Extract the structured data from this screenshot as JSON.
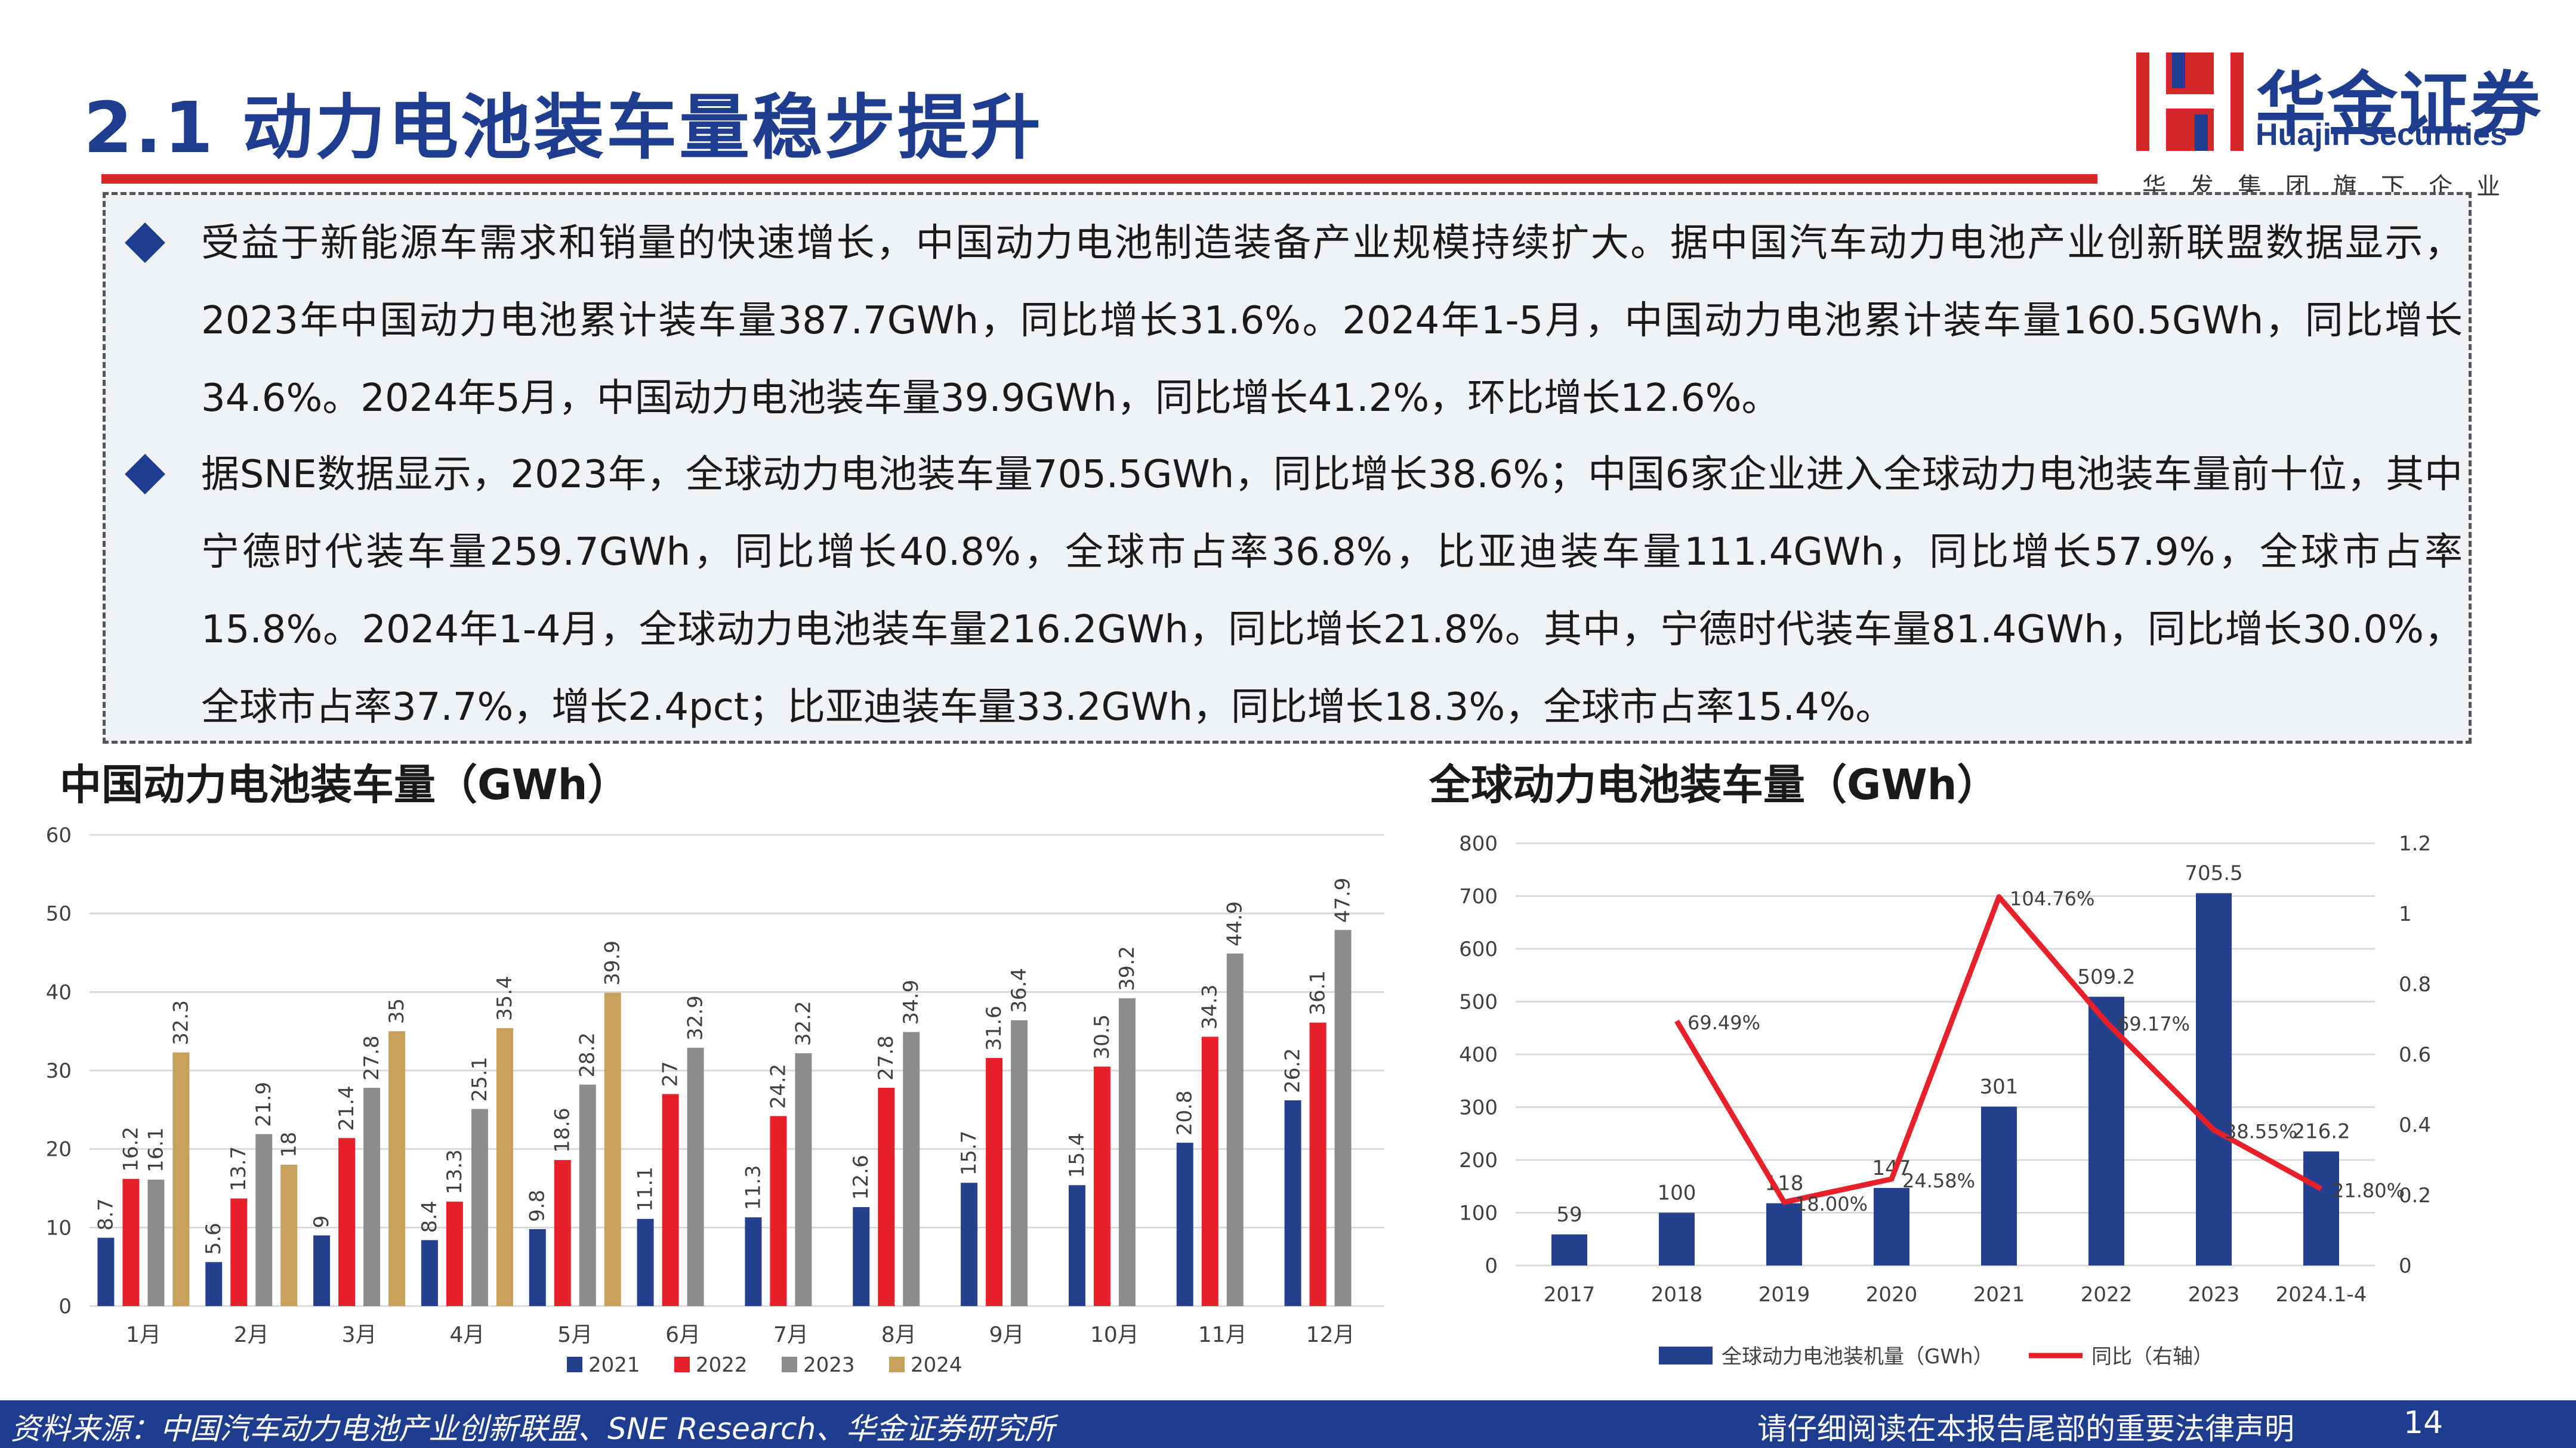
{
  "header": {
    "title": "2.1 动力电池装车量稳步提升",
    "logo_cn": "华金证券",
    "logo_en": "Huajin Securities",
    "logo_sub": "华发集团旗下企业",
    "accent": "#1f3d8f",
    "red": "#d62828"
  },
  "paragraphs": [
    {
      "text": "受益于新能源车需求和销量的快速增长，中国动力电池制造装备产业规模持续扩大。据中国汽车动力电池产业创新联盟数据显示，2023年中国动力电池累计装车量387.7GWh，同比增长31.6%。2024年1-5月，中国动力电池累计装车量160.5GWh，同比增长34.6%。2024年5月，中国动力电池装车量39.9GWh，同比增长41.2%，环比增长12.6%。"
    },
    {
      "text": "据SNE数据显示，2023年，全球动力电池装车量705.5GWh，同比增长38.6%；中国6家企业进入全球动力电池装车量前十位，其中宁德时代装车量259.7GWh，同比增长40.8%，全球市占率36.8%，比亚迪装车量111.4GWh，同比增长57.9%，全球市占率15.8%。2024年1-4月，全球动力电池装车量216.2GWh，同比增长21.8%。其中，宁德时代装车量81.4GWh，同比增长30.0%，全球市占率37.7%，增长2.4pct；比亚迪装车量33.2GWh，同比增长18.3%，全球市占率15.4%。"
    }
  ],
  "chart_data": [
    {
      "type": "bar",
      "title": "中国动力电池装车量（GWh）",
      "categories": [
        "1月",
        "2月",
        "3月",
        "4月",
        "5月",
        "6月",
        "7月",
        "8月",
        "9月",
        "10月",
        "11月",
        "12月"
      ],
      "ylim": [
        0,
        60
      ],
      "yticks": [
        "0",
        "10",
        "20",
        "30",
        "40",
        "50",
        "60"
      ],
      "grid": true,
      "legend": "bottom",
      "series": [
        {
          "name": "2021",
          "color": "#24408e",
          "values": [
            8.7,
            5.6,
            9,
            8.4,
            9.8,
            11.1,
            11.3,
            12.6,
            15.7,
            15.4,
            20.8,
            26.2
          ],
          "labels": [
            "8.7",
            "5.6",
            "9",
            "8.4",
            "9.8",
            "11.1",
            "11.3",
            "12.6",
            "15.7",
            "15.4",
            "20.8",
            "26.2"
          ]
        },
        {
          "name": "2022",
          "color": "#e8202a",
          "values": [
            16.2,
            13.7,
            21.4,
            13.3,
            18.6,
            27,
            24.2,
            27.8,
            31.6,
            30.5,
            34.3,
            36.1
          ],
          "labels": [
            "16.2",
            "13.7",
            "21.4",
            "13.3",
            "18.6",
            "27",
            "24.2",
            "27.8",
            "31.6",
            "30.5",
            "34.3",
            "36.1"
          ]
        },
        {
          "name": "2023",
          "color": "#8c8c8c",
          "values": [
            16.1,
            21.9,
            27.8,
            25.1,
            28.2,
            32.9,
            32.2,
            34.9,
            36.4,
            39.2,
            44.9,
            47.9
          ],
          "labels": [
            "16.1",
            "21.9",
            "27.8",
            "25.1",
            "28.2",
            "32.9",
            "32.2",
            "34.9",
            "36.4",
            "39.2",
            "44.9",
            "47.9"
          ]
        },
        {
          "name": "2024",
          "color": "#c8a05a",
          "values": [
            32.3,
            18,
            35,
            35.4,
            39.9,
            null,
            null,
            null,
            null,
            null,
            null,
            null
          ],
          "labels": [
            "32.3",
            "18",
            "35",
            "35.4",
            "39.9",
            "",
            "",
            "",
            "",
            "",
            "",
            ""
          ]
        }
      ]
    },
    {
      "type": "bar",
      "title": "全球动力电池装车量（GWh）",
      "categories": [
        "2017",
        "2018",
        "2019",
        "2020",
        "2021",
        "2022",
        "2023",
        "2024.1-4"
      ],
      "ylim": [
        0,
        800
      ],
      "yticks": [
        "0",
        "100",
        "200",
        "300",
        "400",
        "500",
        "600",
        "700",
        "800"
      ],
      "y2lim": [
        0,
        1.2
      ],
      "y2ticks": [
        "0",
        "0.2",
        "0.4",
        "0.6",
        "0.8",
        "1",
        "1.2"
      ],
      "grid": true,
      "legend": "bottom",
      "series": [
        {
          "name": "全球动力电池装机量（GWh）",
          "type": "bar",
          "color": "#24408e",
          "values": [
            59,
            100,
            118,
            147,
            301,
            509.2,
            705.5,
            216.2
          ],
          "labels": [
            "59",
            "100",
            "118",
            "147",
            "301",
            "509.2",
            "705.5",
            "216.2"
          ]
        },
        {
          "name": "同比（右轴）",
          "type": "line",
          "axis": "right",
          "color": "#e8202a",
          "values": [
            null,
            0.6949,
            0.18,
            0.2458,
            1.0476,
            0.6917,
            0.3855,
            0.218
          ],
          "labels": [
            "",
            "69.49%",
            "18.00%",
            "24.58%",
            "104.76%",
            "69.17%",
            "38.55%",
            "21.80%"
          ]
        }
      ]
    }
  ],
  "footer": {
    "source": "资料来源：中国汽车动力电池产业创新联盟、SNE Research、华金证券研究所",
    "disclaimer": "请仔细阅读在本报告尾部的重要法律声明",
    "page": "14"
  }
}
